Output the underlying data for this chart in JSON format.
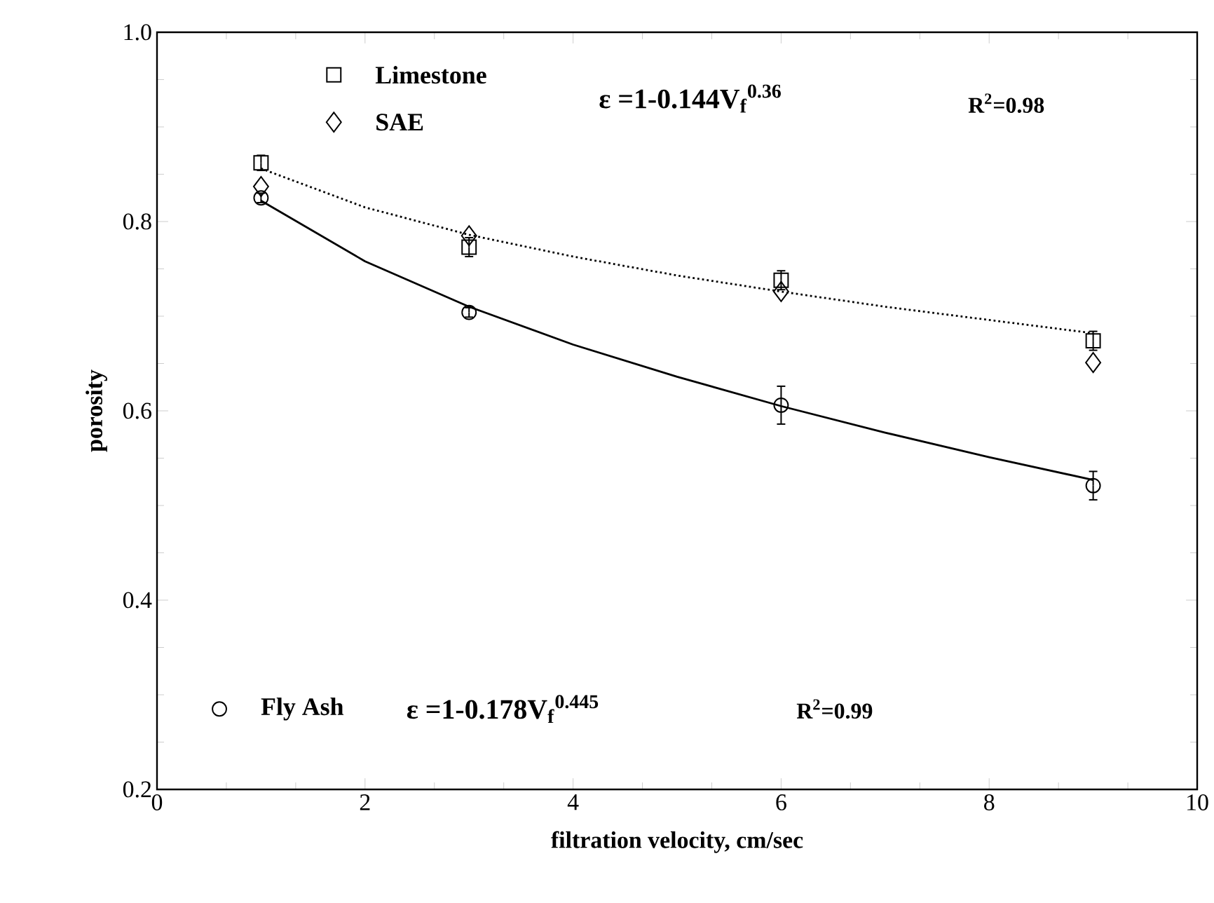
{
  "chart_data": {
    "type": "scatter",
    "xlabel": "filtration velocity, cm/sec",
    "ylabel": "porosity",
    "xlim": [
      0,
      10
    ],
    "ylim": [
      0.2,
      1.0
    ],
    "xticks": [
      0,
      2,
      4,
      6,
      8,
      10
    ],
    "yticks": [
      {
        "value": 0.2,
        "label": "0.2"
      },
      {
        "value": 0.4,
        "label": "0.4"
      },
      {
        "value": 0.6,
        "label": "0.6"
      },
      {
        "value": 0.8,
        "label": "0.8"
      },
      {
        "value": 1.0,
        "label": "1.0"
      }
    ],
    "grid": false,
    "legend": "top left",
    "x": [
      1,
      3,
      6,
      9
    ],
    "series": [
      {
        "name": "Limestone",
        "color": "#000000",
        "marker": "square",
        "values": [
          0.862,
          0.773,
          0.738,
          0.674
        ],
        "errors": [
          0.008,
          0.01,
          0.01,
          0.01
        ]
      },
      {
        "name": "SAE",
        "color": "#000000",
        "marker": "diamond",
        "values": [
          0.837,
          0.785,
          0.726,
          0.651
        ]
      },
      {
        "name": "Fly Ash",
        "color": "#000000",
        "marker": "circle",
        "values": [
          0.825,
          0.704,
          0.606,
          0.521
        ],
        "errors": [
          0.005,
          0.005,
          0.02,
          0.015
        ]
      },
      {
        "type": "line",
        "color": "#000000",
        "marker": "none",
        "line_style": "dotted",
        "x": [
          1,
          2,
          3,
          4,
          5,
          6,
          7,
          8,
          9
        ],
        "values": [
          0.856,
          0.815,
          0.786,
          0.763,
          0.743,
          0.726,
          0.71,
          0.696,
          0.682
        ]
      },
      {
        "type": "line",
        "color": "#000000",
        "marker": "none",
        "line_style": "solid",
        "x": [
          1,
          2,
          3,
          4,
          5,
          6,
          7,
          8,
          9
        ],
        "values": [
          0.822,
          0.758,
          0.71,
          0.67,
          0.636,
          0.605,
          0.577,
          0.551,
          0.527
        ]
      }
    ],
    "annotations": [
      "ε =1-0.144V$_{f}$$^{0.36}$",
      "R$^{2}$=0.98",
      "ε =1-0.178V$_{f}$$^{0.445}$",
      "R$^{2}$=0.99"
    ]
  }
}
